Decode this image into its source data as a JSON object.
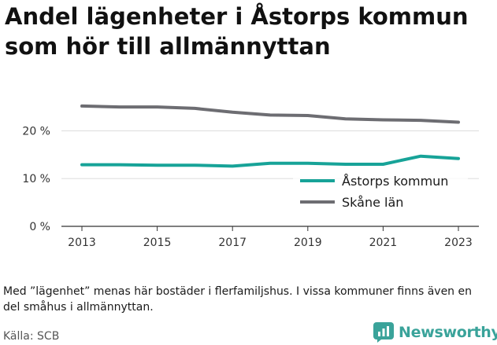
{
  "title": "Andel lägenheter i Åstorps kommun som hör till allmännyttan",
  "note": "Med ”lägenhet” menas här bostäder i flerfamiljshus. I vissa kommuner finns även en del småhus i allmännyttan.",
  "source": "Källa: SCB",
  "brand": {
    "name": "Newsworthy",
    "color": "#3aa39a",
    "icon": "newsworthy-logo-icon"
  },
  "chart_data": {
    "type": "line",
    "title": "Andel lägenheter i Åstorps kommun som hör till allmännyttan",
    "xlabel": "",
    "ylabel": "",
    "x": [
      2013,
      2014,
      2015,
      2016,
      2017,
      2018,
      2019,
      2020,
      2021,
      2022,
      2023
    ],
    "x_ticks": [
      "2013",
      "2015",
      "2017",
      "2019",
      "2021",
      "2023"
    ],
    "y_ticks": [
      "0 %",
      "10 %",
      "20 %"
    ],
    "y_tick_values": [
      0,
      10,
      20
    ],
    "ylim": [
      0,
      26
    ],
    "grid": true,
    "legend": "right",
    "series": [
      {
        "name": "Åstorps kommun",
        "color": "#17a398",
        "values": [
          12.9,
          12.9,
          12.8,
          12.8,
          12.6,
          13.2,
          13.2,
          13.0,
          13.0,
          14.7,
          14.2
        ]
      },
      {
        "name": "Skåne län",
        "color": "#6d6d72",
        "values": [
          25.2,
          25.0,
          25.0,
          24.7,
          23.9,
          23.3,
          23.2,
          22.5,
          22.3,
          22.2,
          21.8
        ]
      }
    ]
  }
}
